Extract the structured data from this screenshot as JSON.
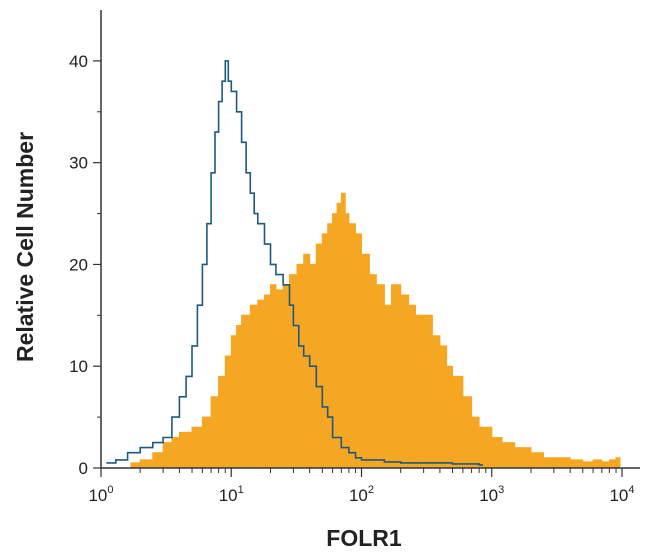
{
  "chart_data": {
    "type": "area",
    "xlabel": "FOLR1",
    "ylabel": "Relative Cell Number",
    "x_scale": "log",
    "xlim": [
      1,
      10000
    ],
    "ylim": [
      0,
      45
    ],
    "x_ticks": [
      {
        "base": "10",
        "exp": "0",
        "value": 1
      },
      {
        "base": "10",
        "exp": "1",
        "value": 10
      },
      {
        "base": "10",
        "exp": "2",
        "value": 100
      },
      {
        "base": "10",
        "exp": "3",
        "value": 1000
      },
      {
        "base": "10",
        "exp": "4",
        "value": 10000
      }
    ],
    "y_ticks": [
      "0",
      "10",
      "20",
      "30",
      "40"
    ],
    "grid": false,
    "series": [
      {
        "style": "filled",
        "color": "#f5a623",
        "x": [
          1.7,
          2,
          2.5,
          3,
          3.5,
          4,
          5,
          6,
          7,
          8,
          9,
          10,
          11,
          12,
          14,
          16,
          18,
          20,
          22,
          25,
          28,
          32,
          36,
          40,
          45,
          50,
          55,
          60,
          65,
          70,
          75,
          80,
          90,
          100,
          115,
          130,
          150,
          170,
          200,
          230,
          260,
          300,
          350,
          400,
          450,
          500,
          600,
          700,
          800,
          1000,
          1200,
          1500,
          2000,
          2500,
          3000,
          4000,
          5000,
          6000,
          7000,
          8000,
          9000
        ],
        "values": [
          0.5,
          0.8,
          1.5,
          2.5,
          3.0,
          3.5,
          4,
          5,
          7,
          9,
          11,
          13,
          14,
          15,
          16,
          16.5,
          17,
          18,
          17.5,
          18,
          19,
          20,
          21,
          20,
          22,
          23,
          24,
          25,
          26,
          27,
          25,
          24,
          23,
          21,
          19,
          18,
          16,
          18,
          17,
          16,
          15,
          15,
          13,
          12,
          10,
          9,
          7,
          5,
          4,
          3,
          2.5,
          2,
          1.5,
          1,
          1,
          0.8,
          0.6,
          0.8,
          0.6,
          0.8,
          1
        ]
      },
      {
        "style": "line",
        "color": "#1c5a80",
        "x": [
          1.1,
          1.3,
          1.6,
          2,
          2.5,
          3,
          3.5,
          4,
          4.5,
          5,
          5.5,
          6,
          6.5,
          7,
          7.5,
          8,
          8.5,
          9,
          9.5,
          10,
          11,
          12,
          13,
          14,
          15,
          16,
          18,
          20,
          22,
          25,
          28,
          30,
          33,
          36,
          40,
          45,
          50,
          55,
          60,
          70,
          80,
          90,
          100,
          150,
          200,
          300,
          500,
          800
        ],
        "values": [
          0.5,
          0.8,
          1.5,
          2,
          2.5,
          3,
          5,
          7,
          9,
          12,
          16,
          20,
          24,
          29,
          33,
          36,
          38,
          40,
          38,
          37,
          35,
          32,
          29,
          27,
          25,
          24,
          22,
          20,
          19,
          18,
          16,
          14,
          12,
          11,
          10,
          8,
          6,
          5,
          3,
          2,
          1.5,
          1,
          0.8,
          0.6,
          0.5,
          0.5,
          0.4,
          0.3
        ]
      }
    ]
  }
}
